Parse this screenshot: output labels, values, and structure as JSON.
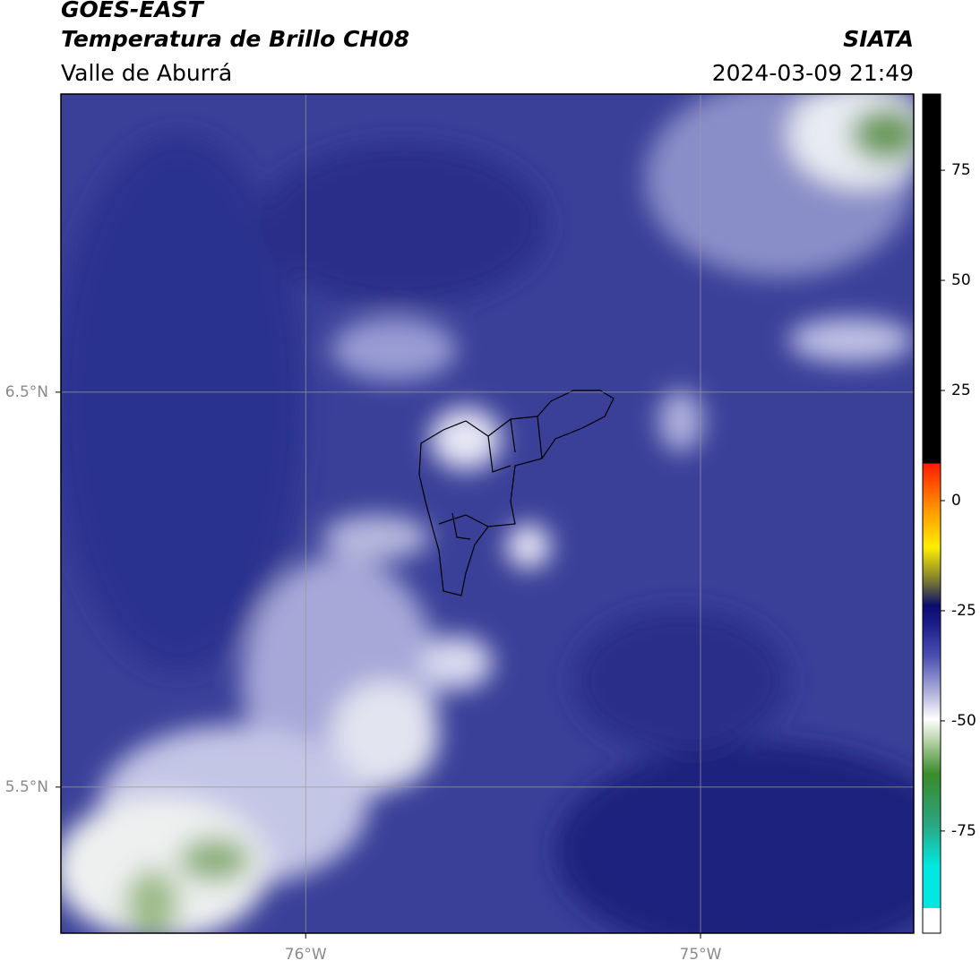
{
  "header": {
    "title": "GOES-EAST",
    "subtitle": "Temperatura de Brillo CH08",
    "region": "Valle de Aburrá",
    "agency": "SIATA",
    "timestamp": "2024-03-09 21:49"
  },
  "map": {
    "xlim": [
      -76.62,
      -74.46
    ],
    "ylim": [
      5.13,
      7.255
    ],
    "xticks": [
      {
        "value": -76,
        "label": "76°W"
      },
      {
        "value": -75,
        "label": "75°W"
      }
    ],
    "yticks": [
      {
        "value": 6.5,
        "label": "6.5°N"
      },
      {
        "value": 5.5,
        "label": "5.5°N"
      }
    ],
    "grid": true
  },
  "colorbar": {
    "lim": [
      -98.2,
      92.3
    ],
    "ticks": [
      75,
      50,
      25,
      0,
      -25,
      -50,
      -75
    ]
  }
}
